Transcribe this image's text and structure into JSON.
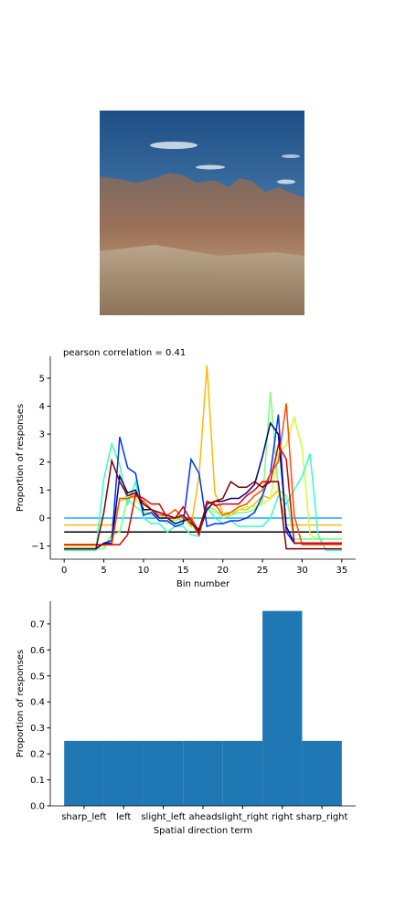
{
  "chart_data": [
    {
      "type": "line",
      "title": "pearson correlation = 0.41",
      "xlabel": "Bin number",
      "ylabel": "Proportion of responses",
      "x": [
        0,
        1,
        2,
        3,
        4,
        5,
        6,
        7,
        8,
        9,
        10,
        11,
        12,
        13,
        14,
        15,
        16,
        17,
        18,
        19,
        20,
        21,
        22,
        23,
        24,
        25,
        26,
        27,
        28,
        29,
        30,
        31,
        32,
        33,
        34,
        35
      ],
      "xlim": [
        -1.75,
        36.75
      ],
      "xticks": [
        0,
        5,
        10,
        15,
        20,
        25,
        30,
        35
      ],
      "ylim": [
        -1.47,
        5.78
      ],
      "yticks": [
        {
          "value": -1,
          "label": "−1"
        },
        0,
        1,
        2,
        3,
        4,
        5
      ],
      "series": [
        {
          "color": "#1aa8ff",
          "values": [
            0,
            0,
            0,
            0,
            0,
            0,
            0,
            0,
            0,
            0,
            0,
            0,
            0,
            0,
            0,
            0,
            0,
            0,
            0,
            0,
            0,
            0,
            0,
            0,
            0,
            0,
            0,
            0,
            0,
            0,
            0,
            0,
            0,
            0,
            0,
            0
          ]
        },
        {
          "color": "#000000",
          "values": [
            -0.5,
            -0.5,
            -0.5,
            -0.5,
            -0.5,
            -0.5,
            -0.5,
            -0.5,
            -0.5,
            -0.5,
            -0.5,
            -0.5,
            -0.5,
            -0.5,
            -0.5,
            -0.5,
            -0.5,
            -0.5,
            -0.5,
            -0.5,
            -0.5,
            -0.5,
            -0.5,
            -0.5,
            -0.5,
            -0.5,
            -0.5,
            -0.5,
            -0.5,
            -0.5,
            -0.5,
            -0.5,
            -0.5,
            -0.5,
            -0.5,
            -0.5
          ]
        },
        {
          "color": "#ffb900",
          "values": [
            -0.25,
            -0.25,
            -0.25,
            -0.25,
            -0.25,
            -0.25,
            -0.25,
            0.6,
            0.7,
            0.9,
            0.5,
            0.3,
            0,
            0.1,
            -0.1,
            0,
            -0.3,
            1.5,
            5.45,
            0.9,
            0.2,
            0.1,
            0.3,
            0.3,
            0.5,
            0.8,
            0.7,
            1.0,
            -0.25,
            -0.25,
            -0.25,
            -0.25,
            -0.25,
            -0.25,
            -0.25,
            -0.25
          ]
        },
        {
          "color": "#ccff33",
          "values": [
            -1.0,
            -1.0,
            -1.0,
            -1.0,
            -1.0,
            -1.0,
            -0.6,
            0.6,
            0.8,
            0.7,
            0.3,
            0.1,
            0,
            0.1,
            -0.1,
            0,
            -0.1,
            -0.5,
            0.3,
            0.2,
            0.2,
            0.2,
            0.3,
            0.4,
            0.4,
            0.5,
            0.7,
            2.3,
            2.6,
            3.6,
            2.5,
            -0.6,
            -0.75,
            -0.75,
            -0.75,
            -0.75
          ]
        },
        {
          "color": "#7cff79",
          "values": [
            -1.1,
            -1.1,
            -1.1,
            -1.1,
            -1.1,
            -1.1,
            -0.6,
            -0.5,
            0.7,
            0.4,
            0.2,
            0.1,
            0,
            -0.2,
            0,
            -0.1,
            -0.2,
            -0.6,
            0.4,
            0.3,
            0,
            0.1,
            0.2,
            0.2,
            0.3,
            0.6,
            4.5,
            1.0,
            0.8,
            -0.75,
            -0.75,
            -0.75,
            -0.75,
            -0.75,
            -0.75,
            -0.75
          ]
        },
        {
          "color": "#33ffc4",
          "values": [
            -1.15,
            -1.15,
            -1.15,
            -1.15,
            -1.15,
            1.4,
            2.65,
            1.9,
            0.5,
            1.3,
            0,
            -0.2,
            -0.2,
            -0.5,
            -0.3,
            -0.3,
            -0.6,
            -0.65,
            0.4,
            0,
            -0.2,
            -0.1,
            -0.3,
            -0.3,
            -0.3,
            -0.3,
            0,
            0.8,
            0.5,
            1.0,
            1.5,
            2.3,
            -0.6,
            -1.15,
            -1.15,
            -1.15
          ]
        },
        {
          "color": "#0030ff",
          "values": [
            -1.1,
            -1.1,
            -1.1,
            -1.1,
            -1.1,
            -0.9,
            -0.8,
            2.9,
            1.8,
            1.6,
            0.1,
            0.2,
            -0.1,
            -0.1,
            -0.3,
            -0.2,
            2.1,
            1.6,
            -0.3,
            -0.2,
            -0.2,
            -0.1,
            -0.1,
            0,
            0.2,
            0.8,
            1.6,
            3.7,
            -0.5,
            -0.9,
            -0.9,
            -0.9,
            -0.9,
            -0.9,
            -0.9,
            -0.9
          ]
        },
        {
          "color": "#00007f",
          "values": [
            -1.1,
            -1.1,
            -1.1,
            -1.1,
            -1.1,
            -0.9,
            -0.9,
            1.5,
            0.9,
            1.0,
            0.3,
            0.3,
            0,
            0,
            -0.2,
            -0.1,
            0,
            -0.5,
            0.3,
            0.6,
            0.6,
            0.7,
            0.7,
            0.9,
            1.2,
            2.2,
            3.4,
            3.0,
            -0.3,
            -0.9,
            -0.9,
            -0.9,
            -0.9,
            -0.9,
            -0.9,
            -0.9
          ]
        },
        {
          "color": "#ff4a00",
          "values": [
            -0.95,
            -0.95,
            -0.95,
            -0.95,
            -0.95,
            -0.95,
            -0.95,
            0.7,
            0.7,
            0.8,
            0.6,
            0.3,
            0.1,
            0.1,
            0.3,
            0,
            0,
            -0.6,
            0.6,
            0.5,
            0.1,
            0.2,
            0.4,
            0.5,
            0.8,
            1.0,
            1.6,
            2.0,
            4.1,
            0.1,
            -0.95,
            -0.95,
            -0.95,
            -0.95,
            -0.95,
            -0.95
          ]
        },
        {
          "color": "#dd0000",
          "values": [
            -0.95,
            -0.95,
            -0.95,
            -0.95,
            -0.95,
            -0.95,
            -0.95,
            -0.95,
            -0.6,
            0.85,
            0.7,
            0.5,
            0.5,
            0,
            0,
            0.4,
            -0.1,
            -0.6,
            0.6,
            0.45,
            0.5,
            0.5,
            0.5,
            0.8,
            1.0,
            1.3,
            1.3,
            2.6,
            2.1,
            -0.9,
            -0.9,
            -0.9,
            -0.9,
            -0.9,
            -0.9,
            -0.9
          ]
        },
        {
          "color": "#7f0000",
          "values": [
            -1.1,
            -1.1,
            -1.1,
            -1.1,
            -1.1,
            0.2,
            2.05,
            1.3,
            0.8,
            0.9,
            0.5,
            0.3,
            0.2,
            0.1,
            0,
            0.1,
            -0.2,
            -0.4,
            0.5,
            0.6,
            0.7,
            1.3,
            1.1,
            1.1,
            1.3,
            1.1,
            1.3,
            1.3,
            -1.1,
            -1.1,
            -1.1,
            -1.1,
            -1.1,
            -1.1,
            -1.1,
            -1.1
          ]
        }
      ]
    },
    {
      "type": "bar",
      "xlabel": "Spatial direction term",
      "ylabel": "Proportion of responses",
      "categories": [
        "sharp_left",
        "left",
        "slight_left",
        "ahead",
        "slight_right",
        "right",
        "sharp_right"
      ],
      "values": [
        0.25,
        0.25,
        0.25,
        0.25,
        0.25,
        0.75,
        0.25
      ],
      "color": "#1f77b4",
      "ylim": [
        0,
        0.7875
      ],
      "yticks": [
        {
          "value": 0,
          "label": "0.0"
        },
        0.1,
        0.2,
        0.3,
        0.4,
        0.5,
        0.6,
        0.7
      ]
    }
  ]
}
